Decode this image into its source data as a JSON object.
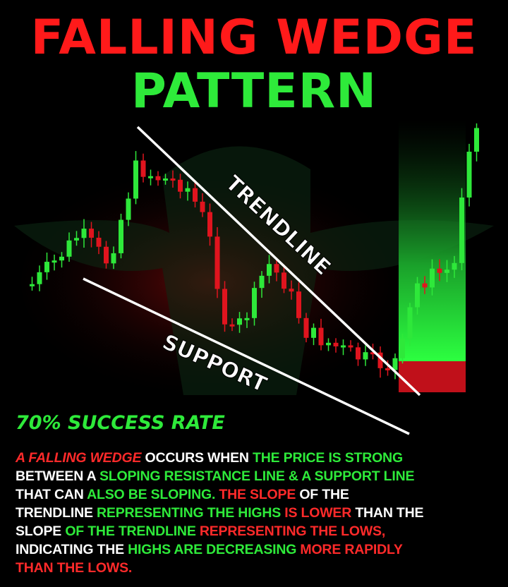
{
  "header": {
    "title_line1": "FALLING WEDGE",
    "title_line2": "PATTERN"
  },
  "labels": {
    "trendline": "TRENDLINE",
    "support": "SUPPORT",
    "success_rate": "70% SUCCESS RATE"
  },
  "paragraph": {
    "lines": [
      [
        {
          "text": "A FALLING WEDGE",
          "color": "red",
          "italic": true
        },
        {
          "text": " OCCURS WHEN ",
          "color": "white"
        },
        {
          "text": "THE PRICE IS STRONG",
          "color": "green"
        }
      ],
      [
        {
          "text": "BETWEEN A ",
          "color": "white"
        },
        {
          "text": "SLOPING RESISTANCE LINE & A SUPPORT LINE",
          "color": "green"
        }
      ],
      [
        {
          "text": "THAT CAN ",
          "color": "white"
        },
        {
          "text": "ALSO BE SLOPING.",
          "color": "green"
        },
        {
          "text": " THE SLOPE",
          "color": "red"
        },
        {
          "text": " OF THE",
          "color": "white"
        }
      ],
      [
        {
          "text": "TRENDLINE",
          "color": "white"
        },
        {
          "text": " REPRESENTING THE HIGHS",
          "color": "green"
        },
        {
          "text": " IS LOWER",
          "color": "red"
        },
        {
          "text": " THAN THE",
          "color": "white"
        }
      ],
      [
        {
          "text": "SLOPE",
          "color": "white"
        },
        {
          "text": " OF THE TRENDLINE",
          "color": "green"
        },
        {
          "text": " REPRESENTING THE LOWS,",
          "color": "red"
        }
      ],
      [
        {
          "text": "INDICATING THE ",
          "color": "white"
        },
        {
          "text": "HIGHS ARE DECREASING",
          "color": "green"
        },
        {
          "text": " MORE RAPIDLY",
          "color": "red"
        }
      ],
      [
        {
          "text": "THAN THE LOWS.",
          "color": "red"
        }
      ]
    ]
  }
}
